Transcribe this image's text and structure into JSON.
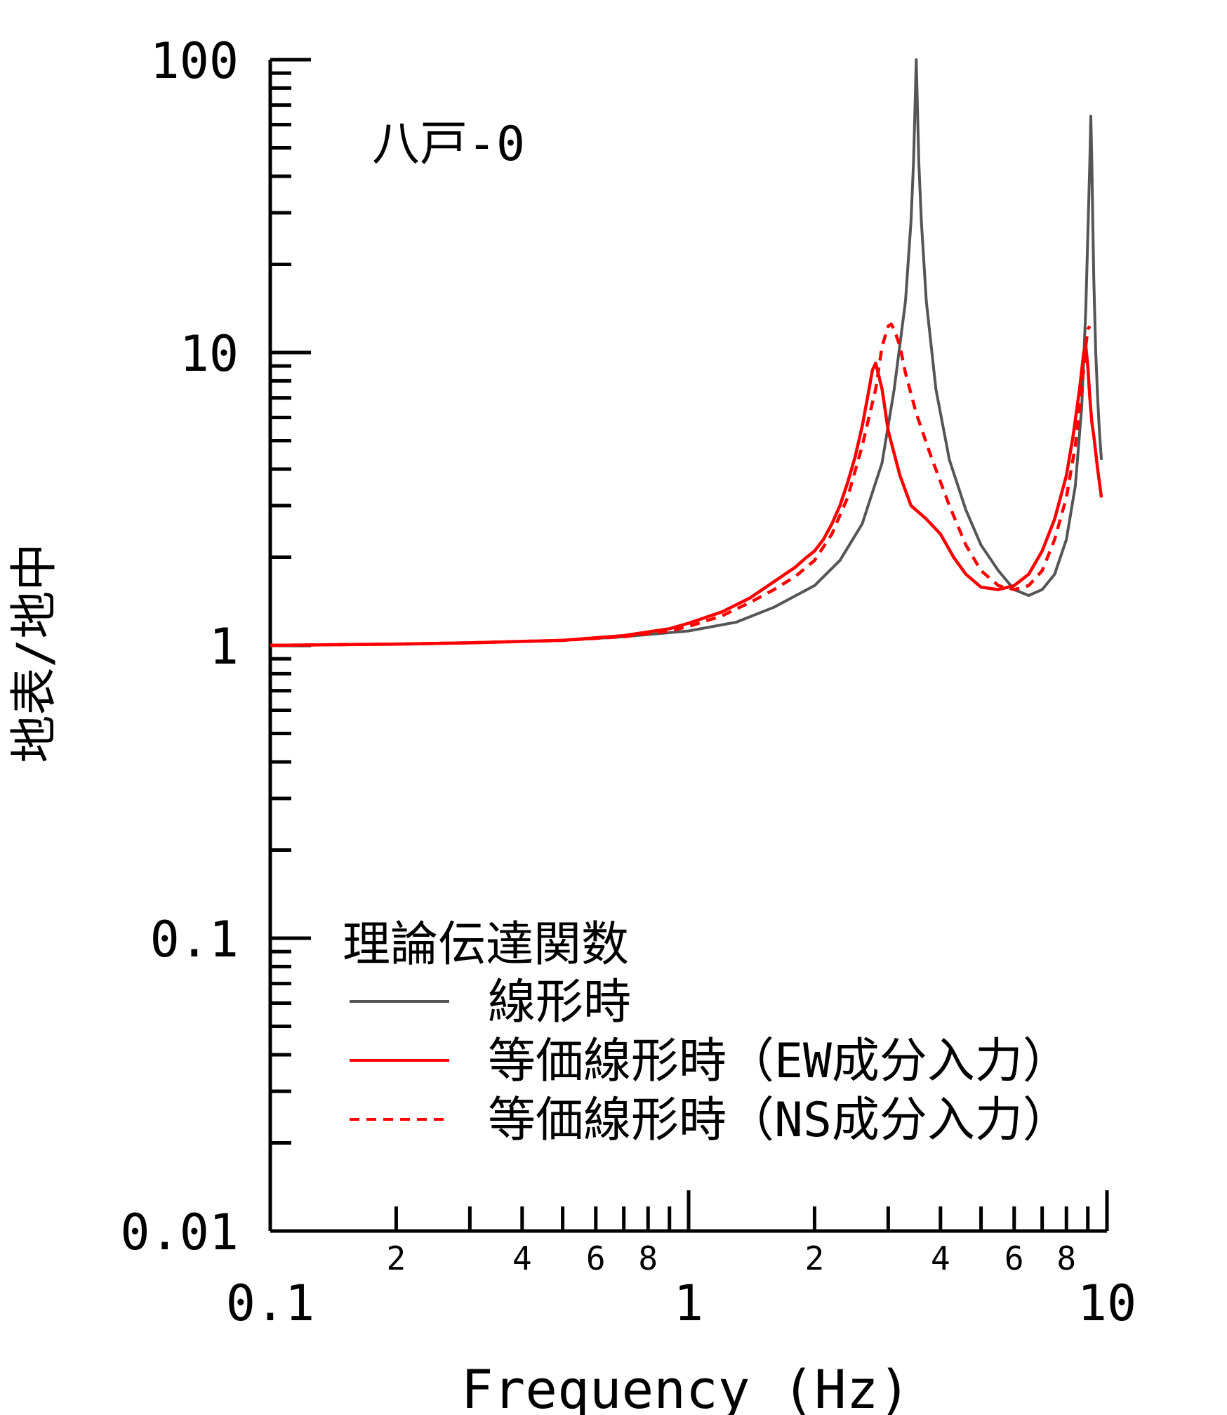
{
  "chart_data": {
    "type": "line",
    "annotation": "八戸-0",
    "xlabel": "Frequency (Hz)",
    "ylabel": "地表/地中",
    "x_scale": "log",
    "y_scale": "log",
    "xlim": [
      0.1,
      10
    ],
    "ylim": [
      0.01,
      100
    ],
    "x_major_labels": [
      "0.1",
      "1",
      "10"
    ],
    "x_minor_labels": [
      "2",
      "4",
      "6",
      "8",
      "2",
      "4",
      "6",
      "8"
    ],
    "y_major_labels": [
      "100",
      "10",
      "1",
      "0.1",
      "0.01"
    ],
    "grid": false,
    "legend": {
      "title": "理論伝達関数",
      "placement": "bottom-center"
    },
    "series": [
      {
        "name": "線形時",
        "color": "#555555",
        "dash": "solid",
        "x": [
          0.1,
          0.2,
          0.3,
          0.5,
          0.7,
          1.0,
          1.3,
          1.6,
          2.0,
          2.3,
          2.6,
          2.9,
          3.1,
          3.3,
          3.4,
          3.45,
          3.5,
          3.55,
          3.6,
          3.7,
          3.9,
          4.2,
          4.6,
          5.0,
          5.5,
          6.0,
          6.5,
          7.0,
          7.5,
          8.0,
          8.4,
          8.7,
          8.9,
          9.0,
          9.1,
          9.15,
          9.2,
          9.25,
          9.3,
          9.4,
          9.5,
          9.6,
          9.7
        ],
        "y": [
          1.0,
          1.01,
          1.02,
          1.04,
          1.07,
          1.12,
          1.2,
          1.35,
          1.6,
          1.95,
          2.6,
          4.2,
          7.5,
          15.0,
          28.0,
          45.0,
          100.0,
          45.0,
          28.0,
          15.0,
          7.5,
          4.3,
          2.9,
          2.2,
          1.8,
          1.55,
          1.48,
          1.55,
          1.75,
          2.3,
          3.5,
          6.5,
          14.0,
          25.0,
          45.0,
          64.0,
          45.0,
          28.0,
          18.0,
          10.0,
          7.0,
          5.3,
          4.3
        ]
      },
      {
        "name": "等価線形時（EW成分入力）",
        "color": "#ff0000",
        "dash": "solid",
        "x": [
          0.1,
          0.2,
          0.3,
          0.5,
          0.7,
          0.9,
          1.0,
          1.2,
          1.4,
          1.6,
          1.8,
          1.9,
          2.0,
          2.1,
          2.2,
          2.3,
          2.4,
          2.5,
          2.6,
          2.7,
          2.75,
          2.8,
          2.9,
          3.0,
          3.2,
          3.4,
          3.7,
          4.0,
          4.3,
          4.6,
          5.0,
          5.5,
          6.0,
          6.5,
          7.0,
          7.5,
          8.0,
          8.3,
          8.6,
          8.8,
          8.9,
          9.0,
          9.1,
          9.2,
          9.3,
          9.5,
          9.7
        ],
        "y": [
          1.0,
          1.01,
          1.02,
          1.04,
          1.08,
          1.14,
          1.19,
          1.3,
          1.45,
          1.65,
          1.85,
          1.98,
          2.1,
          2.3,
          2.6,
          3.0,
          3.6,
          4.4,
          5.6,
          7.5,
          8.7,
          9.2,
          7.5,
          5.4,
          3.8,
          3.0,
          2.7,
          2.4,
          2.0,
          1.75,
          1.58,
          1.55,
          1.6,
          1.75,
          2.1,
          2.7,
          3.8,
          5.2,
          7.5,
          10.0,
          10.5,
          9.0,
          7.0,
          5.8,
          5.2,
          4.0,
          3.2
        ]
      },
      {
        "name": "等価線形時（NS成分入力）",
        "color": "#ff0000",
        "dash": "dashed",
        "x": [
          0.1,
          0.2,
          0.3,
          0.5,
          0.7,
          0.9,
          1.0,
          1.2,
          1.4,
          1.6,
          1.8,
          2.0,
          2.2,
          2.4,
          2.6,
          2.8,
          2.9,
          3.0,
          3.05,
          3.1,
          3.2,
          3.3,
          3.5,
          3.8,
          4.2,
          4.6,
          5.0,
          5.5,
          6.0,
          6.5,
          7.0,
          7.5,
          8.0,
          8.4,
          8.7,
          8.9,
          9.0,
          9.1
        ],
        "y": [
          1.0,
          1.01,
          1.02,
          1.04,
          1.07,
          1.12,
          1.16,
          1.26,
          1.4,
          1.55,
          1.72,
          1.95,
          2.4,
          3.2,
          4.8,
          7.5,
          10.5,
          12.3,
          12.5,
          12.0,
          10.5,
          8.5,
          6.2,
          4.4,
          3.0,
          2.2,
          1.8,
          1.6,
          1.55,
          1.6,
          1.8,
          2.3,
          3.2,
          4.8,
          7.5,
          10.5,
          12.0,
          12.3
        ]
      }
    ]
  }
}
